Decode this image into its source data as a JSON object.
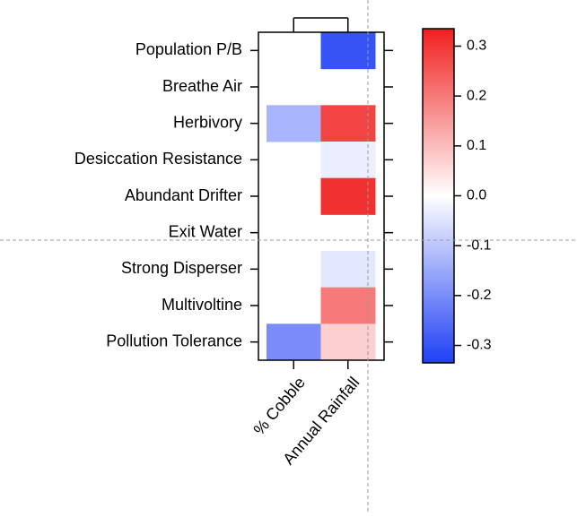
{
  "chart_data": {
    "type": "heatmap",
    "rows": [
      "Population P/B",
      "Breathe Air",
      "Herbivory",
      "Desiccation Resistance",
      "Abundant Drifter",
      "Exit Water",
      "Strong Disperser",
      "Multivoltine",
      "Pollution Tolerance"
    ],
    "columns": [
      "% Cobble",
      "Annual Rainfall"
    ],
    "values": [
      [
        null,
        -0.3
      ],
      [
        null,
        null
      ],
      [
        -0.13,
        0.28
      ],
      [
        null,
        -0.03
      ],
      [
        null,
        0.31
      ],
      [
        null,
        null
      ],
      [
        null,
        -0.04
      ],
      [
        null,
        0.2
      ],
      [
        -0.2,
        0.07
      ]
    ],
    "colors": [
      "#1f3ff5",
      "#ffffff",
      "#f0201e"
    ],
    "zlim": [
      -0.335,
      0.335
    ],
    "zticks": [
      -0.3,
      -0.2,
      -0.1,
      {
        "value": 0,
        "label": "0.0"
      },
      0.1,
      0.2,
      0.3
    ]
  }
}
